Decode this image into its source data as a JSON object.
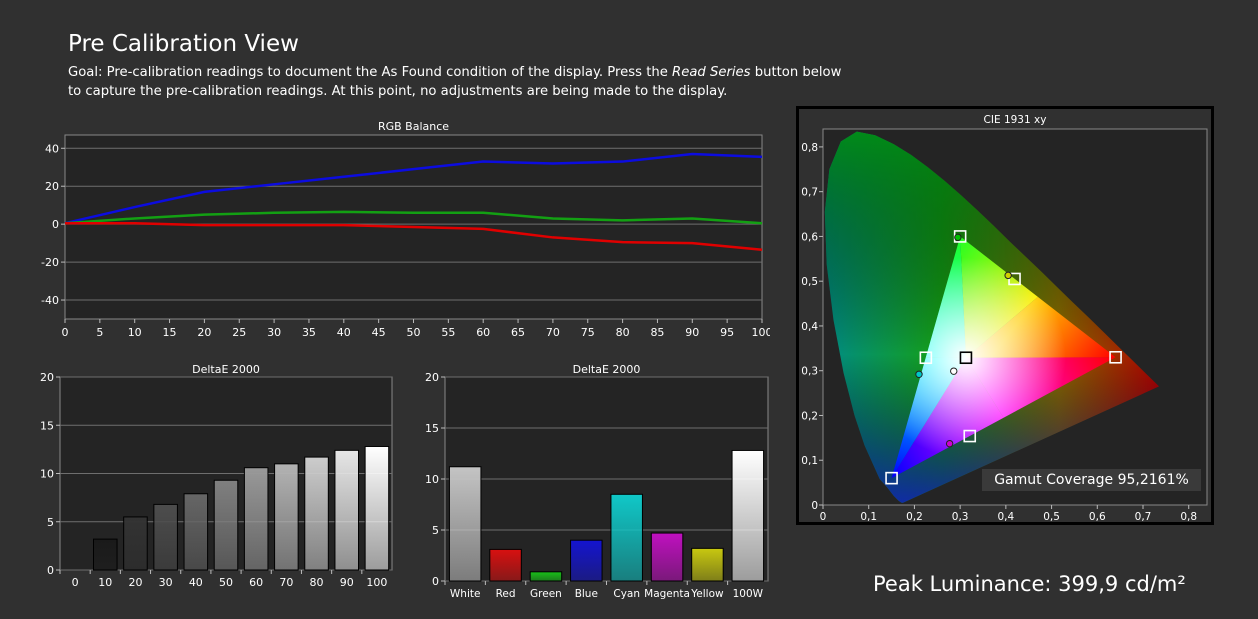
{
  "header": {
    "title": "Pre Calibration View",
    "goal_prefix": "Goal: Pre-calibration readings to document the As Found condition of the display. Press the ",
    "goal_emph": "Read Series",
    "goal_suffix": " button below to capture the pre-calibration readings. At this point, no adjustments are being made to the display."
  },
  "colors": {
    "background": "#303030",
    "plot_bg": "#242424",
    "grid": "#6e6e6e",
    "red": "#e00000",
    "green": "#13a013",
    "blue": "#0c0ce0"
  },
  "chart_data": [
    {
      "id": "rgb",
      "type": "line",
      "title": "RGB Balance",
      "x": [
        0,
        10,
        20,
        30,
        40,
        50,
        60,
        70,
        80,
        90,
        100
      ],
      "xticks": [
        0,
        5,
        10,
        15,
        20,
        25,
        30,
        35,
        40,
        45,
        50,
        55,
        60,
        65,
        70,
        75,
        80,
        85,
        90,
        95,
        100
      ],
      "xlim": [
        0,
        100
      ],
      "ylim": [
        -50,
        47
      ],
      "yticks": [
        -40,
        -20,
        0,
        20,
        40
      ],
      "grid": true,
      "series": [
        {
          "color": "#0c0ce0",
          "values": [
            0.5,
            9,
            17,
            21,
            25,
            29,
            33,
            32,
            33,
            37,
            35.5
          ]
        },
        {
          "color": "#13a013",
          "values": [
            0.5,
            3,
            5,
            6,
            6.5,
            6,
            6,
            3,
            2,
            3,
            0.5
          ]
        },
        {
          "color": "#e00000",
          "values": [
            0.5,
            0.5,
            -0.5,
            -0.5,
            -0.5,
            -1.5,
            -2.5,
            -7,
            -9.5,
            -10,
            -13.5
          ]
        }
      ]
    },
    {
      "id": "gray",
      "type": "bar",
      "title": "DeltaE 2000",
      "categories": [
        "0",
        "10",
        "20",
        "30",
        "40",
        "50",
        "60",
        "70",
        "80",
        "90",
        "100"
      ],
      "values": [
        0,
        3.2,
        5.5,
        6.8,
        7.9,
        9.3,
        10.6,
        11,
        11.7,
        12.4,
        12.8
      ],
      "colors": [
        "#000000",
        "#1a1a1a",
        "#333333",
        "#4d4d4d",
        "#666666",
        "#808080",
        "#999999",
        "#b3b3b3",
        "#cccccc",
        "#e6e6e6",
        "#ffffff"
      ],
      "ylim": [
        0,
        20
      ],
      "yticks": [
        0,
        5,
        10,
        15,
        20
      ],
      "grid": true
    },
    {
      "id": "color",
      "type": "bar",
      "title": "DeltaE 2000",
      "categories": [
        "White",
        "Red",
        "Green",
        "Blue",
        "Cyan",
        "Magenta",
        "Yellow",
        "100W"
      ],
      "values": [
        11.2,
        3.1,
        0.9,
        4,
        8.5,
        4.7,
        3.2,
        12.8
      ],
      "colors": [
        "#c4c4c4",
        "#d81010",
        "#18c018",
        "#1414d0",
        "#10c8c8",
        "#c010c0",
        "#c8c810",
        "#ffffff"
      ],
      "ylim": [
        0,
        20
      ],
      "yticks": [
        0,
        5,
        10,
        15,
        20
      ],
      "grid": true
    },
    {
      "id": "cie",
      "type": "scatter",
      "title": "CIE 1931 xy",
      "xlim": [
        0,
        0.84
      ],
      "ylim": [
        0,
        0.84
      ],
      "xticks": [
        "0",
        "0,1",
        "0,2",
        "0,3",
        "0,4",
        "0,5",
        "0,6",
        "0,7",
        "0,8"
      ],
      "yticks": [
        "0",
        "0,1",
        "0,2",
        "0,3",
        "0,4",
        "0,5",
        "0,6",
        "0,7",
        "0,8"
      ],
      "targets": [
        {
          "name": "red",
          "x": 0.64,
          "y": 0.33
        },
        {
          "name": "green",
          "x": 0.3,
          "y": 0.6
        },
        {
          "name": "blue",
          "x": 0.15,
          "y": 0.06
        },
        {
          "name": "white",
          "x": 0.3127,
          "y": 0.329
        },
        {
          "name": "cyan",
          "x": 0.225,
          "y": 0.329
        },
        {
          "name": "magenta",
          "x": 0.321,
          "y": 0.154
        },
        {
          "name": "yellow",
          "x": 0.419,
          "y": 0.505
        }
      ],
      "measured": [
        {
          "name": "green",
          "x": 0.295,
          "y": 0.598,
          "color": "#00c000"
        },
        {
          "name": "yellow",
          "x": 0.405,
          "y": 0.513,
          "color": "#d0d000"
        },
        {
          "name": "cyan",
          "x": 0.21,
          "y": 0.292,
          "color": "#00c8c8"
        },
        {
          "name": "white",
          "x": 0.286,
          "y": 0.299,
          "color": "#ffffff"
        },
        {
          "name": "magenta",
          "x": 0.277,
          "y": 0.137,
          "color": "#d000d0"
        }
      ]
    }
  ],
  "gamut": {
    "label": "Gamut Coverage 95,2161%"
  },
  "peak": {
    "label": "Peak Luminance: 399,9 cd/m²"
  }
}
